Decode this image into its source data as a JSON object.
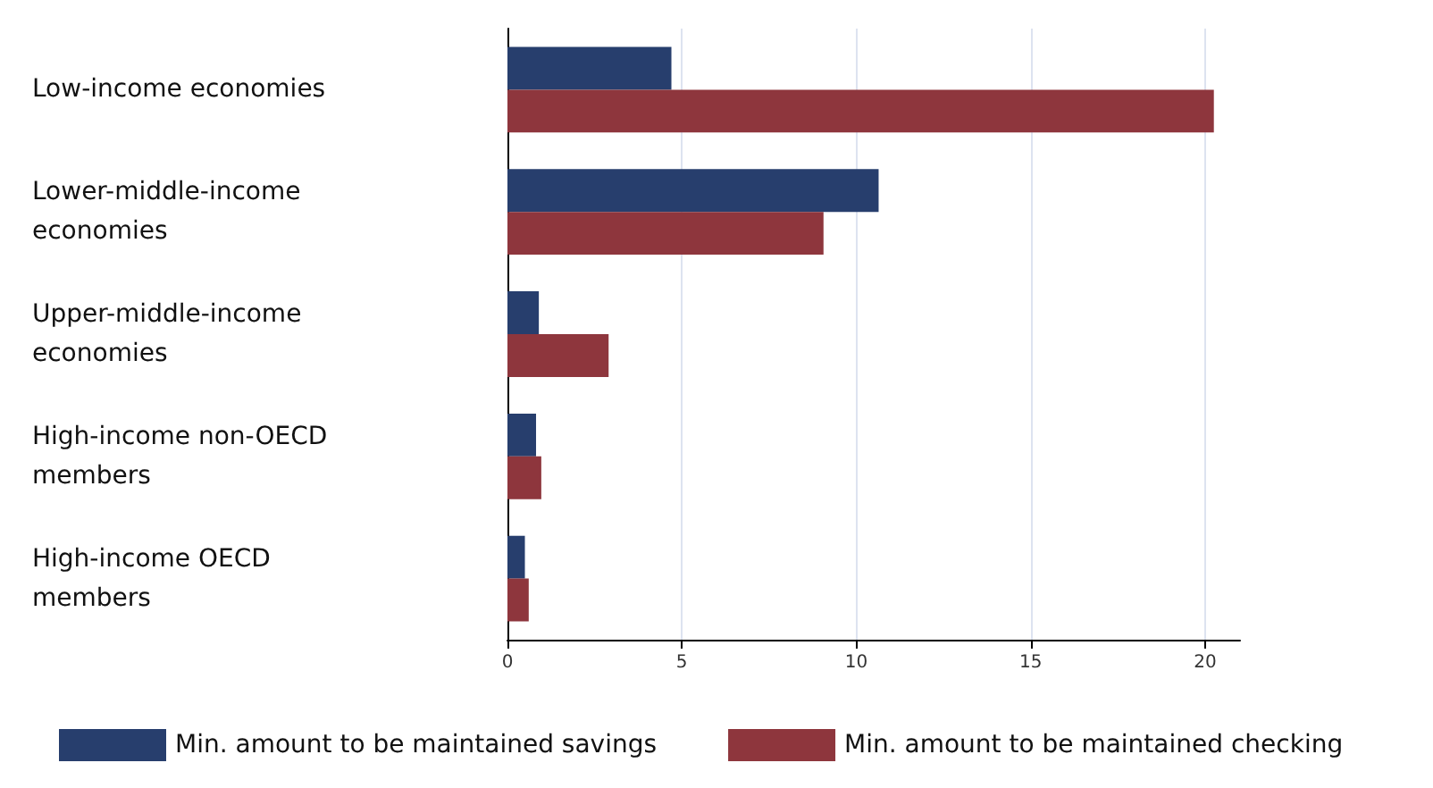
{
  "chart_data": {
    "type": "bar",
    "orientation": "horizontal",
    "categories": [
      "Low-income economies",
      "Lower-middle-income economies",
      "Upper-middle-income economies",
      "High-income non-OECD members",
      "High-income OECD members"
    ],
    "series": [
      {
        "name": "Min. amount to be maintained savings",
        "color": "#273e6d",
        "values": [
          4.7,
          10.64,
          0.9,
          0.82,
          0.5
        ]
      },
      {
        "name": "Min. amount to be maintained checking",
        "color": "#8e363d",
        "values": [
          20.25,
          9.06,
          2.9,
          0.97,
          0.61
        ]
      }
    ],
    "xlim": [
      0,
      21
    ],
    "xticks": [
      0,
      5,
      10,
      15,
      20
    ],
    "grid": "x",
    "legend": "bottom"
  }
}
